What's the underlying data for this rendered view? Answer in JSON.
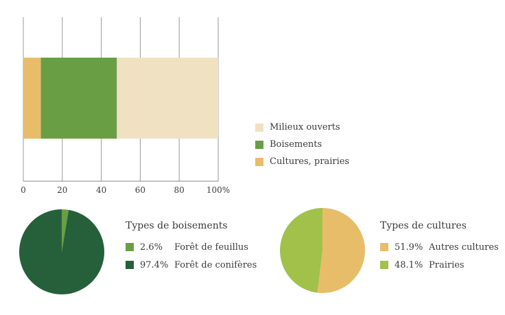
{
  "chart_data": [
    {
      "type": "bar",
      "orientation": "horizontal",
      "stacked": true,
      "categories": [
        ""
      ],
      "series": [
        {
          "name": "Cultures, prairies",
          "values": [
            9
          ],
          "color": "#e8bd6a"
        },
        {
          "name": "Boisements",
          "values": [
            39
          ],
          "color": "#6a9e45"
        },
        {
          "name": "Milieux ouverts",
          "values": [
            52
          ],
          "color": "#f0e1c2"
        }
      ],
      "xlim": [
        0,
        100
      ],
      "xticks": [
        "0",
        "20",
        "40",
        "60",
        "80",
        "100%"
      ],
      "grid": true,
      "legend": {
        "placement": "right",
        "items": [
          "Milieux ouverts",
          "Boisements",
          "Cultures, prairies"
        ]
      }
    },
    {
      "type": "pie",
      "title": "Types de boisements",
      "slices": [
        {
          "label": "Forêt de feuillus",
          "value": 2.6,
          "pct_label": "2.6%",
          "color": "#6a9e45"
        },
        {
          "label": "Forêt de conifères",
          "value": 97.4,
          "pct_label": "97.4%",
          "color": "#26603a"
        }
      ]
    },
    {
      "type": "pie",
      "title": "Types de cultures",
      "slices": [
        {
          "label": "Autres cultures",
          "value": 51.9,
          "pct_label": "51.9%",
          "color": "#e8bd6a"
        },
        {
          "label": "Prairies",
          "value": 48.1,
          "pct_label": "48.1%",
          "color": "#a2c14a"
        }
      ]
    }
  ]
}
